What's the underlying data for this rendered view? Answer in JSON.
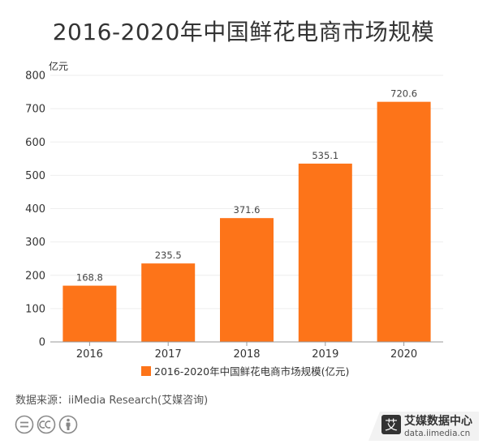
{
  "title": "2016-2020年中国鲜花电商市场规模",
  "source_text": "数据来源：iiMedia Research(艾媒咨询)",
  "brand": {
    "name": "艾媒数据中心",
    "url": "data.iimedia.cn",
    "mark": "艾"
  },
  "colors": {
    "bar": "#FD7419",
    "axis": "#999999",
    "grid": "#EEEEEE",
    "text": "#333333"
  },
  "chart_data": {
    "type": "bar",
    "title": "2016-2020年中国鲜花电商市场规模",
    "ylabel": "亿元",
    "xlabel": "",
    "categories": [
      "2016",
      "2017",
      "2018",
      "2019",
      "2020"
    ],
    "series": [
      {
        "name": "2016-2020年中国鲜花电商市场规模(亿元)",
        "values": [
          168.8,
          235.5,
          371.6,
          535.1,
          720.6
        ]
      }
    ],
    "ylim": [
      0,
      800
    ],
    "yticks": [
      0,
      100,
      200,
      300,
      400,
      500,
      600,
      700,
      800
    ],
    "data_labels": [
      "168.8",
      "235.5",
      "371.6",
      "535.1",
      "720.6"
    ],
    "grid": true,
    "legend_position": "bottom-center"
  }
}
